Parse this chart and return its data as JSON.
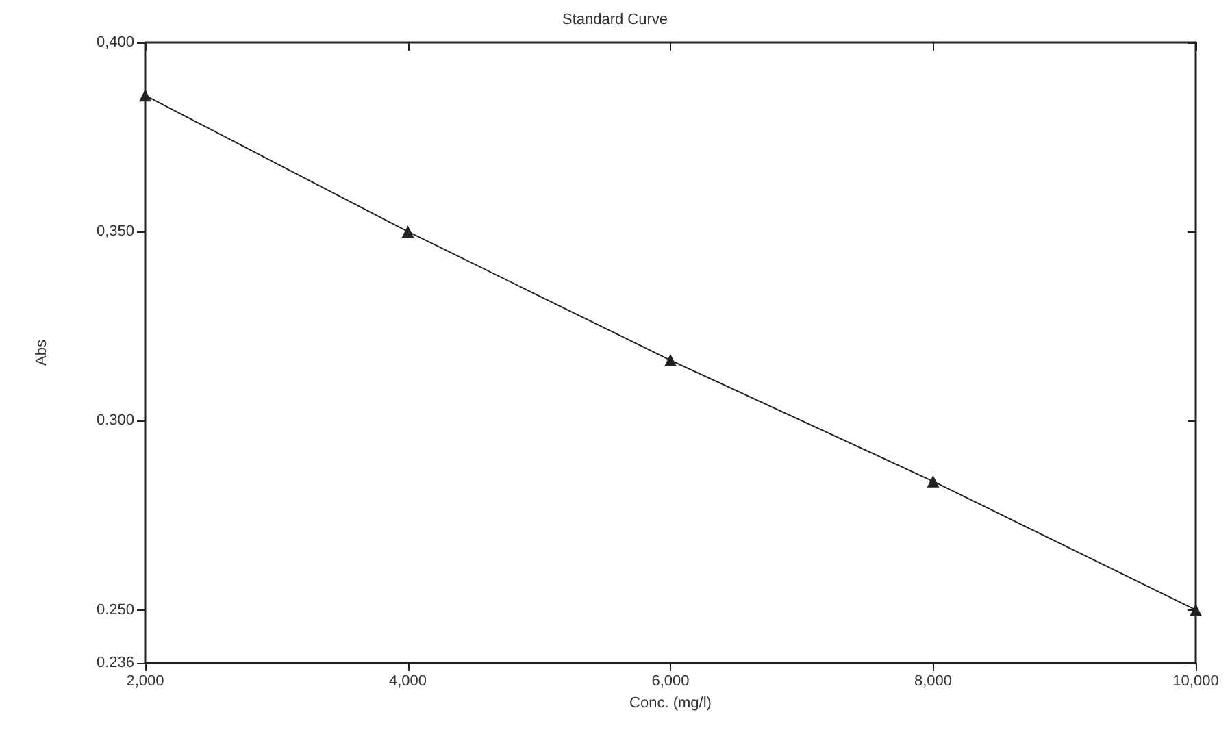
{
  "chart_data": {
    "type": "line",
    "title": "Standard Curve",
    "xlabel": "Conc. (mg/l)",
    "ylabel": "Abs",
    "x": [
      2000,
      4000,
      6000,
      8000,
      10000
    ],
    "series": [
      {
        "color": "#222222",
        "values": [
          0.386,
          0.35,
          0.316,
          0.284,
          0.25
        ]
      }
    ],
    "marker": "triangle",
    "line_style": "solid",
    "grid": false,
    "xlim": [
      2000,
      10000
    ],
    "xticks": [
      {
        "value": 2000,
        "label": "2,000"
      },
      {
        "value": 4000,
        "label": "4,000"
      },
      {
        "value": 6000,
        "label": "6,000"
      },
      {
        "value": 8000,
        "label": "8,000"
      },
      {
        "value": 10000,
        "label": "10,000"
      }
    ],
    "ylim": [
      0.236,
      0.4
    ],
    "yticks": [
      {
        "value": 0.236,
        "label": "0.236"
      },
      {
        "value": 0.25,
        "label": "0.250"
      },
      {
        "value": 0.3,
        "label": "0.300"
      },
      {
        "value": 0.35,
        "label": "0,350"
      },
      {
        "value": 0.4,
        "label": "0,400"
      }
    ]
  }
}
